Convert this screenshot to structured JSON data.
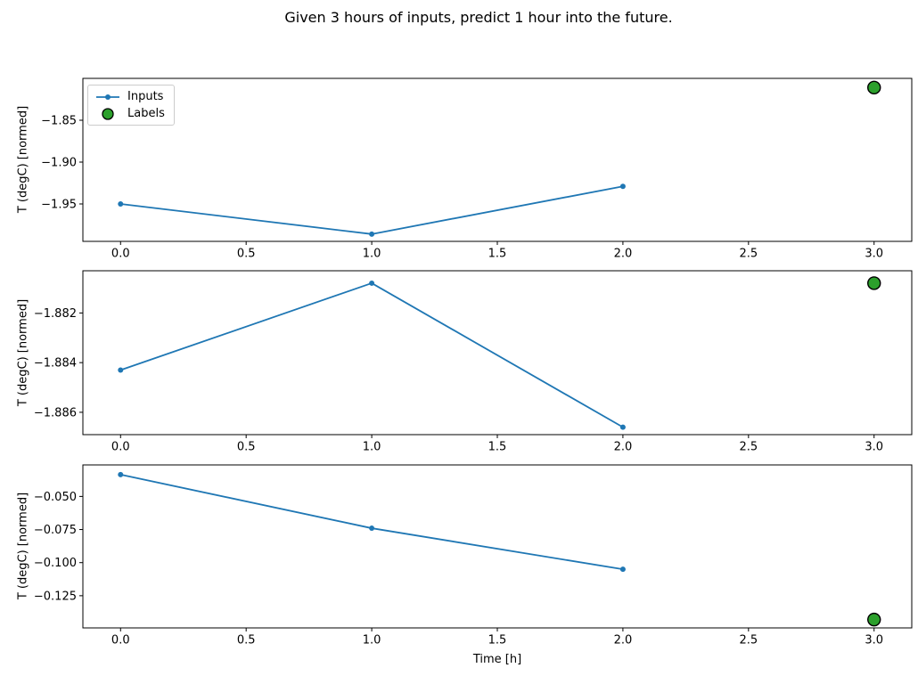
{
  "suptitle": "Given 3 hours of inputs, predict 1 hour into the future.",
  "legend": {
    "items": [
      {
        "label": "Inputs"
      },
      {
        "label": "Labels"
      }
    ]
  },
  "colors": {
    "inputs": "#1f77b4",
    "labels_fill": "#2ca02c",
    "labels_edge": "#000000",
    "spine": "#000000",
    "tick_text": "#000000",
    "legend_border": "#cccccc"
  },
  "chart_data": [
    {
      "type": "line",
      "title": "",
      "xlabel": "",
      "ylabel": "T (degC) [normed]",
      "xlim": [
        -0.15,
        3.15
      ],
      "ylim": [
        -1.9947,
        -1.8
      ],
      "grid": false,
      "legend_position": "upper left",
      "x_ticks": [
        0,
        0.5,
        1,
        1.5,
        2,
        2.5,
        3
      ],
      "x_tick_labels": [
        "0.0",
        "0.5",
        "1.0",
        "1.5",
        "2.0",
        "2.5",
        "3.0"
      ],
      "y_ticks": [
        -1.85,
        -1.9,
        -1.95
      ],
      "y_tick_labels": [
        "−1.85",
        "−1.90",
        "−1.95"
      ],
      "series": [
        {
          "name": "Inputs",
          "style": "line-marker",
          "x": [
            0,
            1,
            2
          ],
          "y": [
            -1.95,
            -1.986,
            -1.929
          ]
        },
        {
          "name": "Labels",
          "style": "scatter",
          "x": [
            3
          ],
          "y": [
            -1.811
          ]
        }
      ]
    },
    {
      "type": "line",
      "title": "",
      "xlabel": "",
      "ylabel": "T (degC) [normed]",
      "xlim": [
        -0.15,
        3.15
      ],
      "ylim": [
        -1.8869,
        -1.8803
      ],
      "grid": false,
      "legend_position": "none",
      "x_ticks": [
        0,
        0.5,
        1,
        1.5,
        2,
        2.5,
        3
      ],
      "x_tick_labels": [
        "0.0",
        "0.5",
        "1.0",
        "1.5",
        "2.0",
        "2.5",
        "3.0"
      ],
      "y_ticks": [
        -1.882,
        -1.884,
        -1.886
      ],
      "y_tick_labels": [
        "−1.882",
        "−1.884",
        "−1.886"
      ],
      "series": [
        {
          "name": "Inputs",
          "style": "line-marker",
          "x": [
            0,
            1,
            2
          ],
          "y": [
            -1.8843,
            -1.8808,
            -1.8866
          ]
        },
        {
          "name": "Labels",
          "style": "scatter",
          "x": [
            3
          ],
          "y": [
            -1.8808
          ]
        }
      ]
    },
    {
      "type": "line",
      "title": "",
      "xlabel": "Time [h]",
      "ylabel": "T (degC) [normed]",
      "xlim": [
        -0.15,
        3.15
      ],
      "ylim": [
        -0.1493,
        -0.0262
      ],
      "grid": false,
      "legend_position": "none",
      "x_ticks": [
        0,
        0.5,
        1,
        1.5,
        2,
        2.5,
        3
      ],
      "x_tick_labels": [
        "0.0",
        "0.5",
        "1.0",
        "1.5",
        "2.0",
        "2.5",
        "3.0"
      ],
      "y_ticks": [
        -0.05,
        -0.075,
        -0.1,
        -0.125
      ],
      "y_tick_labels": [
        "−0.050",
        "−0.075",
        "−0.100",
        "−0.125"
      ],
      "series": [
        {
          "name": "Inputs",
          "style": "line-marker",
          "x": [
            0,
            1,
            2
          ],
          "y": [
            -0.0335,
            -0.074,
            -0.105
          ]
        },
        {
          "name": "Labels",
          "style": "scatter",
          "x": [
            3
          ],
          "y": [
            -0.143
          ]
        }
      ]
    }
  ]
}
